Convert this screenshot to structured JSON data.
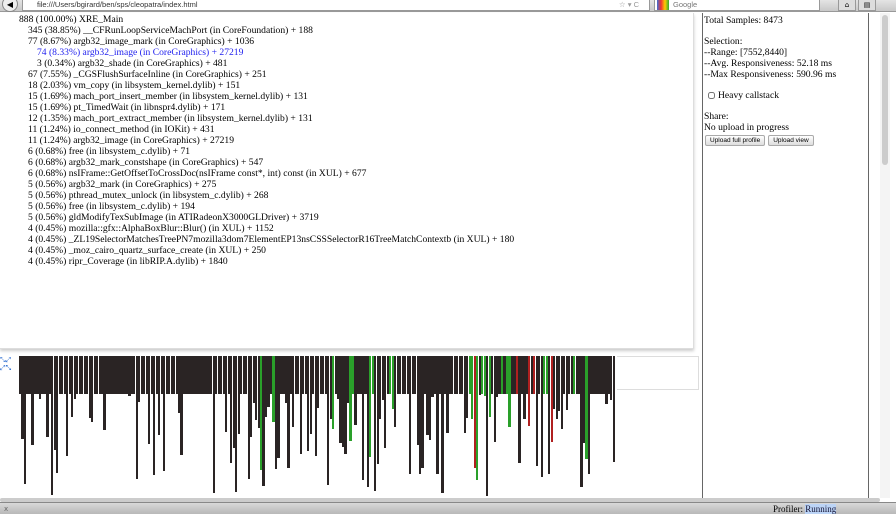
{
  "browser": {
    "url": "file:///Users/bgirard/ben/sps/cleopatra/index.html",
    "search_placeholder": "Google"
  },
  "tree": {
    "rows": [
      {
        "text": "888 (100.00%) XRE_Main",
        "level": 0
      },
      {
        "text": "345 (38.85%) __CFRunLoopServiceMachPort (in CoreFoundation) + 188",
        "level": 1
      },
      {
        "text": "77 (8.67%) argb32_image_mark (in CoreGraphics) + 1036",
        "level": 1
      },
      {
        "text": "74 (8.33%) argb32_image (in CoreGraphics) + 27219",
        "level": 2,
        "selected": true
      },
      {
        "text": "3 (0.34%) argb32_shade (in CoreGraphics) + 481",
        "level": 2
      },
      {
        "text": "67 (7.55%) _CGSFlushSurfaceInline (in CoreGraphics) + 251",
        "level": 1
      },
      {
        "text": "18 (2.03%) vm_copy (in libsystem_kernel.dylib) + 151",
        "level": 1
      },
      {
        "text": "15 (1.69%) mach_port_insert_member (in libsystem_kernel.dylib) + 131",
        "level": 1
      },
      {
        "text": "15 (1.69%) pt_TimedWait (in libnspr4.dylib) + 171",
        "level": 1
      },
      {
        "text": "12 (1.35%) mach_port_extract_member (in libsystem_kernel.dylib) + 131",
        "level": 1
      },
      {
        "text": "11 (1.24%) io_connect_method (in IOKit) + 431",
        "level": 1
      },
      {
        "text": "11 (1.24%) argb32_image (in CoreGraphics) + 27219",
        "level": 1
      },
      {
        "text": "6 (0.68%) free (in libsystem_c.dylib) + 71",
        "level": 1
      },
      {
        "text": "6 (0.68%) argb32_mark_constshape (in CoreGraphics) + 547",
        "level": 1
      },
      {
        "text": "6 (0.68%) nsIFrame::GetOffsetToCrossDoc(nsIFrame const*, int) const (in XUL) + 677",
        "level": 1
      },
      {
        "text": "5 (0.56%) argb32_mark (in CoreGraphics) + 275",
        "level": 1
      },
      {
        "text": "5 (0.56%) pthread_mutex_unlock (in libsystem_c.dylib) + 268",
        "level": 1
      },
      {
        "text": "5 (0.56%) free (in libsystem_c.dylib) + 194",
        "level": 1
      },
      {
        "text": "5 (0.56%) gldModifyTexSubImage (in ATIRadeonX3000GLDriver) + 3719",
        "level": 1
      },
      {
        "text": "4 (0.45%) mozilla::gfx::AlphaBoxBlur::Blur() (in XUL) + 1152",
        "level": 1
      },
      {
        "text": "4 (0.45%) _ZL19SelectorMatchesTreePN7mozilla3dom7ElementEP13nsCSSSelectorR16TreeMatchContextb (in XUL) + 180",
        "level": 1
      },
      {
        "text": "4 (0.45%) _moz_cairo_quartz_surface_create (in XUL) + 250",
        "level": 1
      },
      {
        "text": "4 (0.45%) ripr_Coverage (in libRIP.A.dylib) + 1840",
        "level": 1
      }
    ]
  },
  "sidebar": {
    "total_samples": "Total Samples: 8473",
    "selection_label": "Selection:",
    "range": "--Range: [7552,8440]",
    "avg": "--Avg. Responsiveness: 52.18 ms",
    "max": "--Max Responsiveness: 590.96 ms",
    "heavy_callstack": "Heavy callstack",
    "heavy_callstack_checked": false,
    "share_label": "Share:",
    "upload_status": "No upload in progress",
    "upload_full": "Upload full profile",
    "upload_view": "Upload view"
  },
  "histogram": {
    "colors": {
      "normal": "#2a2424",
      "marked": "#2aa02a",
      "selected": "#b02020"
    }
  },
  "status": {
    "close": "x",
    "profiler_label": "Profiler:",
    "profiler_state": "Running"
  }
}
